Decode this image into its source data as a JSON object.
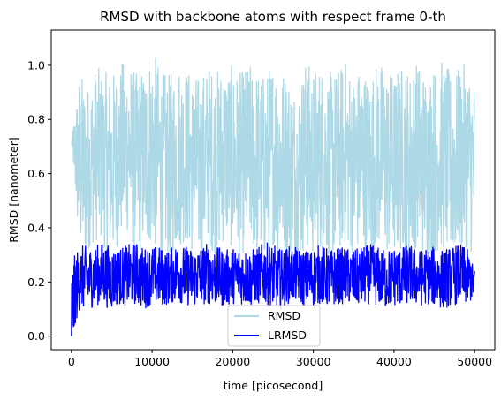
{
  "chart_data": {
    "type": "line",
    "title": "RMSD with backbone atoms with respect frame 0-th",
    "xlabel": "time [picosecond]",
    "ylabel": "RMSD [nanometer]",
    "xlim": [
      -2500,
      52500
    ],
    "ylim": [
      -0.05,
      1.13
    ],
    "xticks": [
      0,
      10000,
      20000,
      30000,
      40000,
      50000
    ],
    "yticks": [
      0.0,
      0.2,
      0.4,
      0.6,
      0.8,
      1.0
    ],
    "ytick_labels": [
      "0.0",
      "0.2",
      "0.4",
      "0.6",
      "0.8",
      "1.0"
    ],
    "grid": false,
    "legend": "lower-center",
    "series": [
      {
        "name": "RMSD",
        "color": "#add8e6",
        "x": [
          0,
          1000,
          2000,
          3000,
          4000,
          5000,
          6000,
          7000,
          8000,
          9000,
          10000,
          11000,
          12000,
          13000,
          14000,
          15000,
          16000,
          17000,
          18000,
          19000,
          20000,
          21000,
          22000,
          23000,
          24000,
          25000,
          26000,
          27000,
          28000,
          29000,
          30000,
          31000,
          32000,
          33000,
          34000,
          35000,
          36000,
          37000,
          38000,
          39000,
          40000,
          41000,
          42000,
          43000,
          44000,
          45000,
          46000,
          47000,
          48000,
          49000,
          50000
        ],
        "y": [
          0.72,
          0.6,
          0.55,
          0.65,
          0.62,
          0.58,
          0.66,
          0.7,
          0.6,
          0.63,
          0.68,
          0.62,
          0.57,
          0.64,
          0.66,
          0.6,
          0.58,
          0.65,
          0.62,
          0.67,
          0.63,
          0.6,
          0.64,
          0.62,
          0.58,
          0.66,
          0.63,
          0.6,
          0.55,
          0.65,
          0.62,
          0.64,
          0.6,
          0.62,
          0.66,
          0.6,
          0.63,
          0.58,
          0.65,
          0.62,
          0.6,
          0.64,
          0.61,
          0.66,
          0.6,
          0.63,
          0.65,
          0.6,
          0.62,
          0.64,
          0.6
        ],
        "y_min": [
          0.72,
          0.3,
          0.32,
          0.36,
          0.33,
          0.3,
          0.35,
          0.38,
          0.31,
          0.33,
          0.35,
          0.3,
          0.3,
          0.33,
          0.35,
          0.32,
          0.3,
          0.33,
          0.3,
          0.36,
          0.33,
          0.3,
          0.33,
          0.31,
          0.3,
          0.34,
          0.3,
          0.32,
          0.28,
          0.33,
          0.3,
          0.33,
          0.3,
          0.31,
          0.35,
          0.3,
          0.33,
          0.3,
          0.33,
          0.31,
          0.3,
          0.33,
          0.3,
          0.34,
          0.3,
          0.31,
          0.33,
          0.3,
          0.31,
          0.33,
          0.3
        ],
        "y_max": [
          0.72,
          1.01,
          0.98,
          1.02,
          1.0,
          1.01,
          1.02,
          1.04,
          1.0,
          1.02,
          1.08,
          1.01,
          1.0,
          1.04,
          1.02,
          1.0,
          1.0,
          1.02,
          1.0,
          1.03,
          1.02,
          1.0,
          1.03,
          1.01,
          1.0,
          1.05,
          1.02,
          1.0,
          0.96,
          1.04,
          1.01,
          1.03,
          1.0,
          1.01,
          1.04,
          1.0,
          1.03,
          1.0,
          1.04,
          1.02,
          1.0,
          1.03,
          1.01,
          1.04,
          1.0,
          1.02,
          1.04,
          1.0,
          1.01,
          1.03,
          0.98
        ]
      },
      {
        "name": "LRMSD",
        "color": "#0000ff",
        "x": [
          0,
          1000,
          2000,
          3000,
          4000,
          5000,
          6000,
          7000,
          8000,
          9000,
          10000,
          11000,
          12000,
          13000,
          14000,
          15000,
          16000,
          17000,
          18000,
          19000,
          20000,
          21000,
          22000,
          23000,
          24000,
          25000,
          26000,
          27000,
          28000,
          29000,
          30000,
          31000,
          32000,
          33000,
          34000,
          35000,
          36000,
          37000,
          38000,
          39000,
          40000,
          41000,
          42000,
          43000,
          44000,
          45000,
          46000,
          47000,
          48000,
          49000,
          50000
        ],
        "y": [
          0.0,
          0.22,
          0.21,
          0.22,
          0.23,
          0.21,
          0.22,
          0.22,
          0.23,
          0.21,
          0.22,
          0.22,
          0.21,
          0.23,
          0.22,
          0.21,
          0.22,
          0.23,
          0.22,
          0.21,
          0.22,
          0.22,
          0.21,
          0.22,
          0.23,
          0.22,
          0.21,
          0.23,
          0.22,
          0.21,
          0.22,
          0.23,
          0.21,
          0.22,
          0.22,
          0.21,
          0.22,
          0.23,
          0.22,
          0.21,
          0.22,
          0.22,
          0.23,
          0.21,
          0.22,
          0.22,
          0.21,
          0.22,
          0.23,
          0.22,
          0.22
        ],
        "y_min": [
          0.0,
          0.1,
          0.09,
          0.12,
          0.11,
          0.1,
          0.12,
          0.11,
          0.12,
          0.1,
          0.12,
          0.11,
          0.12,
          0.13,
          0.12,
          0.11,
          0.12,
          0.12,
          0.11,
          0.11,
          0.12,
          0.12,
          0.11,
          0.12,
          0.12,
          0.11,
          0.1,
          0.12,
          0.13,
          0.11,
          0.11,
          0.12,
          0.1,
          0.12,
          0.12,
          0.11,
          0.11,
          0.12,
          0.11,
          0.1,
          0.11,
          0.11,
          0.12,
          0.11,
          0.12,
          0.11,
          0.1,
          0.11,
          0.12,
          0.11,
          0.12
        ],
        "y_max": [
          0.36,
          0.34,
          0.33,
          0.34,
          0.35,
          0.33,
          0.33,
          0.34,
          0.35,
          0.33,
          0.34,
          0.33,
          0.32,
          0.35,
          0.34,
          0.33,
          0.34,
          0.35,
          0.33,
          0.32,
          0.33,
          0.34,
          0.32,
          0.33,
          0.35,
          0.34,
          0.32,
          0.33,
          0.33,
          0.32,
          0.33,
          0.34,
          0.32,
          0.33,
          0.33,
          0.32,
          0.33,
          0.34,
          0.33,
          0.32,
          0.33,
          0.33,
          0.34,
          0.32,
          0.33,
          0.33,
          0.32,
          0.33,
          0.34,
          0.33,
          0.24
        ]
      }
    ]
  }
}
